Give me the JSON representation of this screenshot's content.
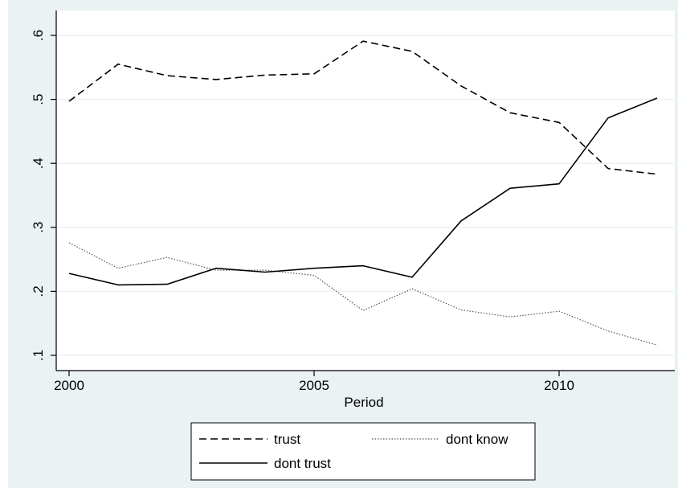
{
  "chart_data": {
    "type": "line",
    "title": "",
    "xlabel": "Period",
    "ylabel": "",
    "xlim": [
      2000,
      2012
    ],
    "ylim": [
      0.1,
      0.6
    ],
    "x_ticks": [
      2000,
      2005,
      2010
    ],
    "x_tick_labels": [
      "2000",
      "2005",
      "2010"
    ],
    "y_ticks": [
      0.1,
      0.2,
      0.3,
      0.4,
      0.5,
      0.6
    ],
    "y_tick_labels": [
      ".1",
      ".2",
      ".3",
      ".4",
      ".5",
      ".6"
    ],
    "grid": "horizontal",
    "legend_position": "bottom",
    "x": [
      2000,
      2001,
      2002,
      2003,
      2004,
      2005,
      2006,
      2007,
      2008,
      2009,
      2010,
      2011,
      2012
    ],
    "series": [
      {
        "name": "trust",
        "style": "dashed",
        "color": "#000000",
        "values": [
          0.497,
          0.555,
          0.537,
          0.531,
          0.538,
          0.54,
          0.591,
          0.575,
          0.521,
          0.479,
          0.464,
          0.392,
          0.383
        ]
      },
      {
        "name": "dont know",
        "style": "dotted",
        "color": "#555555",
        "values": [
          0.276,
          0.236,
          0.253,
          0.233,
          0.233,
          0.225,
          0.17,
          0.204,
          0.171,
          0.16,
          0.169,
          0.138,
          0.116
        ]
      },
      {
        "name": "dont trust",
        "style": "solid",
        "color": "#000000",
        "values": [
          0.228,
          0.21,
          0.211,
          0.236,
          0.23,
          0.236,
          0.24,
          0.222,
          0.31,
          0.361,
          0.368,
          0.471,
          0.502
        ]
      }
    ],
    "colors": {
      "outer_background": "#eaf2f3",
      "plot_background": "#ffffff",
      "gridline": "#eaf2f3"
    }
  }
}
